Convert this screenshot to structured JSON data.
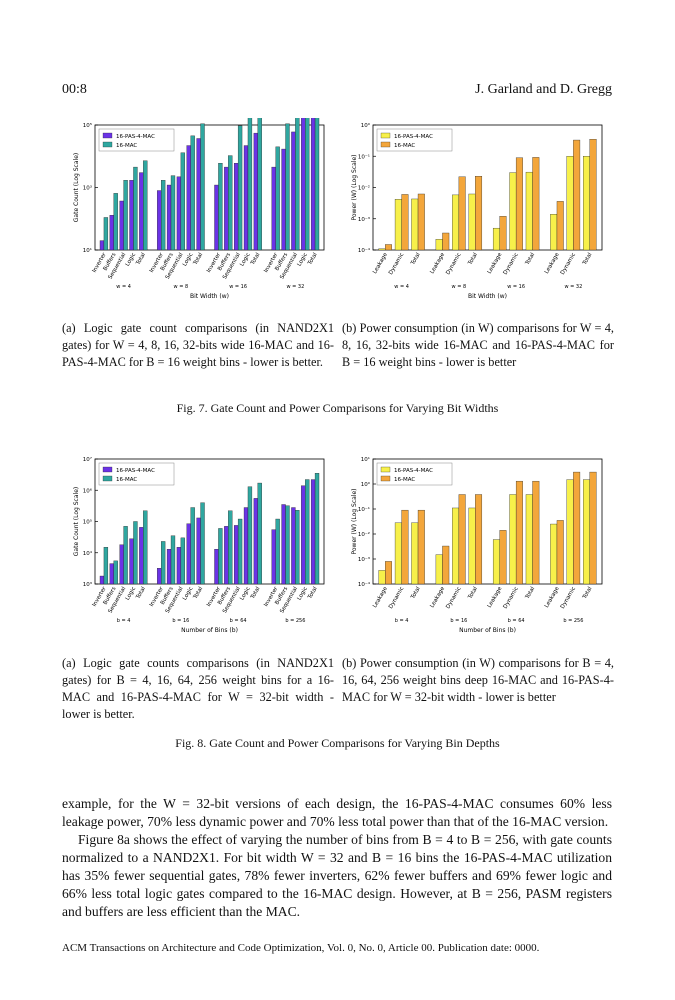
{
  "header": {
    "page_id": "00:8",
    "authors": "J. Garland and D. Gregg"
  },
  "fig7": {
    "caption": "Fig. 7.  Gate Count and Power Comparisons for Varying Bit Widths",
    "a_caption": "(a) Logic gate count comparisons (in NAND2X1 gates) for W = 4, 8, 16, 32-bits wide 16-MAC and 16-PAS-4-MAC for B = 16 weight bins - lower is better.",
    "b_caption": "(b) Power consumption (in W) comparisons for W = 4, 8, 16, 32-bits wide 16-MAC and 16-PAS-4-MAC for B = 16 weight bins - lower is better"
  },
  "fig8": {
    "caption": "Fig. 8.  Gate Count and Power Comparisons for Varying Bin Depths",
    "a_caption": "(a) Logic gate counts comparisons (in NAND2X1 gates) for B = 4, 16, 64, 256 weight bins for a 16-MAC and 16-PAS-4-MAC for W = 32-bit width - lower is better.",
    "b_caption": "(b) Power consumption (in W) comparisons for B = 4, 16, 64, 256 weight bins deep 16-MAC and 16-PAS-4-MAC for W = 32-bit width - lower is better"
  },
  "body_text": {
    "p1": "example, for the W = 32-bit versions of each design, the 16-PAS-4-MAC consumes 60% less leakage power, 70% less dynamic power and 70% less total power than that of the 16-MAC version.",
    "p2": "Figure 8a shows the effect of varying the number of bins from B = 4 to B = 256, with gate counts normalized to a NAND2X1. For bit width W = 32 and B = 16 bins the 16-PAS-4-MAC utilization has 35% fewer sequential gates, 78% fewer inverters, 62% fewer buffers and 69% fewer logic and 66% less total logic gates compared to the 16-MAC design. However, at B = 256, PASM registers and buffers are less efficient than the MAC."
  },
  "footer": "ACM Transactions on Architecture and Code Optimization, Vol. 0, No. 0, Article 00. Publication date: 0000.",
  "chart_data": [
    {
      "id": "fig7a",
      "type": "bar",
      "ylabel": "Gate Count (Log Scale)",
      "xlabel": "Bit Width (w)",
      "yscale": "log",
      "ylim": [
        10,
        100000
      ],
      "ytick_exps": [
        1,
        3,
        5,
        7,
        9
      ],
      "ytick_display": [
        "10¹",
        "10³",
        "10⁵",
        "10⁷",
        "10⁹"
      ],
      "legend_loc": "top-left",
      "series": [
        {
          "name": "16-PAS-4-MAC",
          "color": "#6b33e6"
        },
        {
          "name": "16-MAC",
          "color": "#2fa7a0"
        }
      ],
      "groups": [
        {
          "label": "w = 4",
          "categories": [
            "Inverter",
            "Buffers",
            "Sequential",
            "Logic",
            "Total"
          ],
          "values": [
            [
              20,
              130,
              370,
              1700,
              3000
            ],
            [
              110,
              650,
              1700,
              4500,
              7200
            ]
          ]
        },
        {
          "label": "w = 8",
          "categories": [
            "Inverter",
            "Buffers",
            "Sequential",
            "Logic",
            "Total"
          ],
          "values": [
            [
              800,
              1200,
              2200,
              22000,
              37000
            ],
            [
              1700,
              2400,
              13000,
              45000,
              110000
            ]
          ]
        },
        {
          "label": "w = 16",
          "categories": [
            "Inverter",
            "Buffers",
            "Sequential",
            "Logic",
            "Total"
          ],
          "values": [
            [
              1200,
              4500,
              6000,
              22000,
              55000
            ],
            [
              6000,
              10500,
              95000,
              400000,
              1100000
            ]
          ]
        },
        {
          "label": "w = 32",
          "categories": [
            "Inverter",
            "Buffers",
            "Sequential",
            "Logic",
            "Total"
          ],
          "values": [
            [
              4500,
              17000,
              60000,
              250000,
              800000
            ],
            [
              20000,
              110000,
              400000,
              1800000,
              8000000
            ]
          ]
        }
      ]
    },
    {
      "id": "fig7b",
      "type": "bar",
      "ylabel": "Power (W) (Log Scale)",
      "xlabel": "Bit Width (w)",
      "yscale": "log",
      "ylim": [
        0.0001,
        1
      ],
      "ytick_exps": [
        -4,
        -3,
        -2,
        -1,
        0
      ],
      "ytick_display": [
        "10⁻⁴",
        "10⁻³",
        "10⁻²",
        "10⁻¹",
        "10⁰"
      ],
      "legend_loc": "top-left",
      "series": [
        {
          "name": "16-PAS-4-MAC",
          "color": "#f7f04a"
        },
        {
          "name": "16-MAC",
          "color": "#f3a63b"
        }
      ],
      "groups": [
        {
          "label": "w = 4",
          "categories": [
            "Leakage",
            "Dynamic",
            "Total"
          ],
          "values": [
            [
              0.00011,
              0.0042,
              0.0043
            ],
            [
              0.00015,
              0.006,
              0.0062
            ]
          ]
        },
        {
          "label": "w = 8",
          "categories": [
            "Leakage",
            "Dynamic",
            "Total"
          ],
          "values": [
            [
              0.00022,
              0.0058,
              0.0062
            ],
            [
              0.00035,
              0.022,
              0.023
            ]
          ]
        },
        {
          "label": "w = 16",
          "categories": [
            "Leakage",
            "Dynamic",
            "Total"
          ],
          "values": [
            [
              0.0005,
              0.03,
              0.031
            ],
            [
              0.0012,
              0.09,
              0.092
            ]
          ]
        },
        {
          "label": "w = 32",
          "categories": [
            "Leakage",
            "Dynamic",
            "Total"
          ],
          "values": [
            [
              0.0014,
              0.1,
              0.1
            ],
            [
              0.0036,
              0.33,
              0.35
            ]
          ]
        }
      ]
    },
    {
      "id": "fig8a",
      "type": "bar",
      "ylabel": "Gate Count (Log Scale)",
      "xlabel": "Number of Bins (b)",
      "yscale": "log",
      "ylim": [
        1000,
        10000000
      ],
      "ytick_exps": [
        3,
        4,
        5,
        6,
        7
      ],
      "ytick_display": [
        "10³",
        "10⁴",
        "10⁵",
        "10⁶",
        "10⁷"
      ],
      "legend_loc": "top-left",
      "series": [
        {
          "name": "16-PAS-4-MAC",
          "color": "#6b33e6"
        },
        {
          "name": "16-MAC",
          "color": "#2fa7a0"
        }
      ],
      "groups": [
        {
          "label": "b = 4",
          "categories": [
            "Inverter",
            "Buffers",
            "Sequential",
            "Logic",
            "Total"
          ],
          "values": [
            [
              1800,
              4500,
              18000,
              28000,
              65000
            ],
            [
              15000,
              5500,
              70000,
              100000,
              220000
            ]
          ]
        },
        {
          "label": "b = 16",
          "categories": [
            "Inverter",
            "Buffers",
            "Sequential",
            "Logic",
            "Total"
          ],
          "values": [
            [
              3200,
              13000,
              15000,
              85000,
              130000
            ],
            [
              23000,
              35000,
              30000,
              280000,
              400000
            ]
          ]
        },
        {
          "label": "b = 64",
          "categories": [
            "Inverter",
            "Buffers",
            "Sequential",
            "Logic",
            "Total"
          ],
          "values": [
            [
              13000,
              70000,
              75000,
              280000,
              550000
            ],
            [
              60000,
              220000,
              120000,
              1300000,
              1700000
            ]
          ]
        },
        {
          "label": "b = 256",
          "categories": [
            "Inverter",
            "Buffers",
            "Sequential",
            "Logic",
            "Total"
          ],
          "values": [
            [
              55000,
              350000,
              280000,
              1400000,
              2200000
            ],
            [
              120000,
              320000,
              230000,
              2200000,
              3500000
            ]
          ]
        }
      ]
    },
    {
      "id": "fig8b",
      "type": "bar",
      "ylabel": "Power (W) (Log Scale)",
      "xlabel": "Number of Bins (b)",
      "yscale": "log",
      "ylim": [
        0.0001,
        10
      ],
      "ytick_exps": [
        -4,
        -3,
        -2,
        -1,
        0,
        1
      ],
      "ytick_display": [
        "10⁻⁴",
        "10⁻³",
        "10⁻²",
        "10⁻¹",
        "10⁰",
        "10¹"
      ],
      "legend_loc": "top-left",
      "series": [
        {
          "name": "16-PAS-4-MAC",
          "color": "#f7f04a"
        },
        {
          "name": "16-MAC",
          "color": "#f3a63b"
        }
      ],
      "groups": [
        {
          "label": "b = 4",
          "categories": [
            "Leakage",
            "Dynamic",
            "Total"
          ],
          "values": [
            [
              0.00035,
              0.028,
              0.028
            ],
            [
              0.0008,
              0.09,
              0.09
            ]
          ]
        },
        {
          "label": "b = 16",
          "categories": [
            "Leakage",
            "Dynamic",
            "Total"
          ],
          "values": [
            [
              0.0015,
              0.11,
              0.11
            ],
            [
              0.0033,
              0.38,
              0.38
            ]
          ]
        },
        {
          "label": "b = 64",
          "categories": [
            "Leakage",
            "Dynamic",
            "Total"
          ],
          "values": [
            [
              0.006,
              0.38,
              0.38
            ],
            [
              0.014,
              1.3,
              1.3
            ]
          ]
        },
        {
          "label": "b = 256",
          "categories": [
            "Leakage",
            "Dynamic",
            "Total"
          ],
          "values": [
            [
              0.025,
              1.5,
              1.5
            ],
            [
              0.035,
              3.0,
              3.0
            ]
          ]
        }
      ]
    }
  ]
}
